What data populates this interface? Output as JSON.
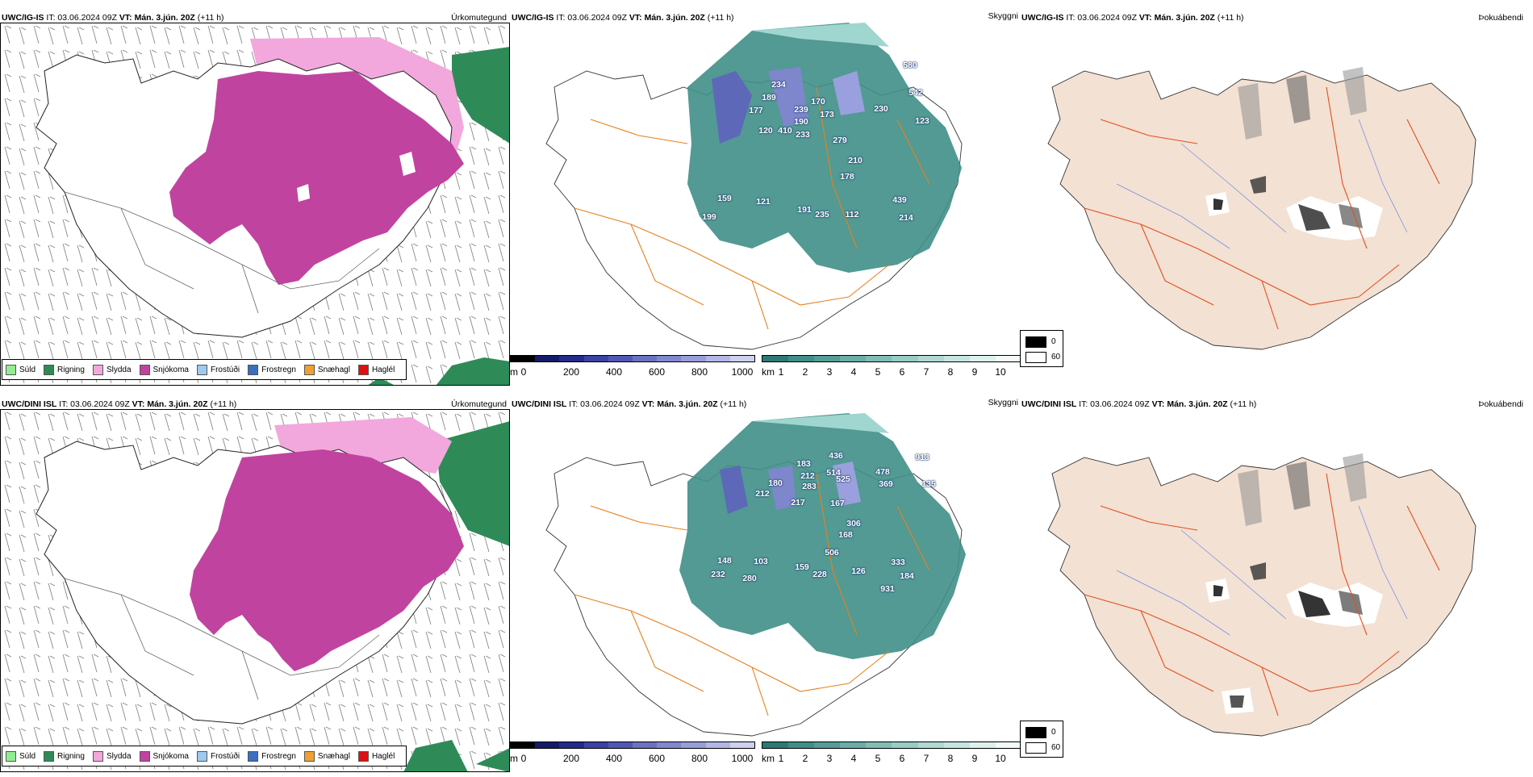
{
  "rows": [
    {
      "model": "UWC/IG-IS",
      "run_prefix": " IT: 03.06.2024 09Z ",
      "vt_label": "VT:",
      "vt_value": " Mán. 3.jún. 20Z",
      "lead": " (+11 h)",
      "types": [
        "Úrkomutegund",
        "Skyggni",
        "Þokuábendi"
      ],
      "visibility_values": [
        {
          "v": "580"
        },
        {
          "v": "234"
        },
        {
          "v": "177"
        },
        {
          "v": "170"
        },
        {
          "v": "189"
        },
        {
          "v": "239"
        },
        {
          "v": "173"
        },
        {
          "v": "190"
        },
        {
          "v": "230"
        },
        {
          "v": "542"
        },
        {
          "v": "123"
        },
        {
          "v": "120"
        },
        {
          "v": "410"
        },
        {
          "v": "233"
        },
        {
          "v": "279"
        },
        {
          "v": "210"
        },
        {
          "v": "178"
        },
        {
          "v": "159"
        },
        {
          "v": "121"
        },
        {
          "v": "199"
        },
        {
          "v": "191"
        },
        {
          "v": "235"
        },
        {
          "v": "112"
        },
        {
          "v": "439"
        },
        {
          "v": "214"
        }
      ]
    },
    {
      "model": "UWC/DINI ISL",
      "run_prefix": " IT: 03.06.2024 09Z ",
      "vt_label": "VT:",
      "vt_value": " Mán. 3.jún. 20Z",
      "lead": " (+11 h)",
      "types": [
        "Úrkomutegund",
        "Skyggni",
        "Þokuábendi"
      ],
      "visibility_values": [
        {
          "v": "436"
        },
        {
          "v": "913"
        },
        {
          "v": "183"
        },
        {
          "v": "212"
        },
        {
          "v": "514"
        },
        {
          "v": "478"
        },
        {
          "v": "180"
        },
        {
          "v": "283"
        },
        {
          "v": "525"
        },
        {
          "v": "369"
        },
        {
          "v": "212"
        },
        {
          "v": "135"
        },
        {
          "v": "217"
        },
        {
          "v": "167"
        },
        {
          "v": "306"
        },
        {
          "v": "168"
        },
        {
          "v": "506"
        },
        {
          "v": "148"
        },
        {
          "v": "103"
        },
        {
          "v": "232"
        },
        {
          "v": "280"
        },
        {
          "v": "159"
        },
        {
          "v": "228"
        },
        {
          "v": "126"
        },
        {
          "v": "333"
        },
        {
          "v": "184"
        },
        {
          "v": "931"
        }
      ]
    }
  ],
  "legend": [
    {
      "label": "Súld",
      "color": "#90ee90"
    },
    {
      "label": "Rigning",
      "color": "#2e8b57"
    },
    {
      "label": "Slydda",
      "color": "#f2a8dc"
    },
    {
      "label": "Snjókoma",
      "color": "#c0449f"
    },
    {
      "label": "Frostúði",
      "color": "#9ec9f0"
    },
    {
      "label": "Frostregn",
      "color": "#3a6fc0"
    },
    {
      "label": "Snæhagl",
      "color": "#f0a030"
    },
    {
      "label": "Haglél",
      "color": "#e01010"
    }
  ],
  "height_scale": {
    "unit": "m",
    "ticks": [
      "0",
      "200",
      "400",
      "600",
      "800",
      "1000"
    ]
  },
  "visibility_scale": {
    "unit": "km",
    "ticks": [
      "1",
      "2",
      "3",
      "4",
      "5",
      "6",
      "7",
      "8",
      "9",
      "10"
    ]
  },
  "fog_legend": [
    {
      "label": "0",
      "color": "#000000"
    },
    {
      "label": "60",
      "color": "#ffffff"
    }
  ],
  "colors": {
    "snow": "#c0449f",
    "sleet": "#f2a8dc",
    "rain": "#2e8b57",
    "fog_land": "#f3e1d3",
    "roads": "#e8601c"
  }
}
